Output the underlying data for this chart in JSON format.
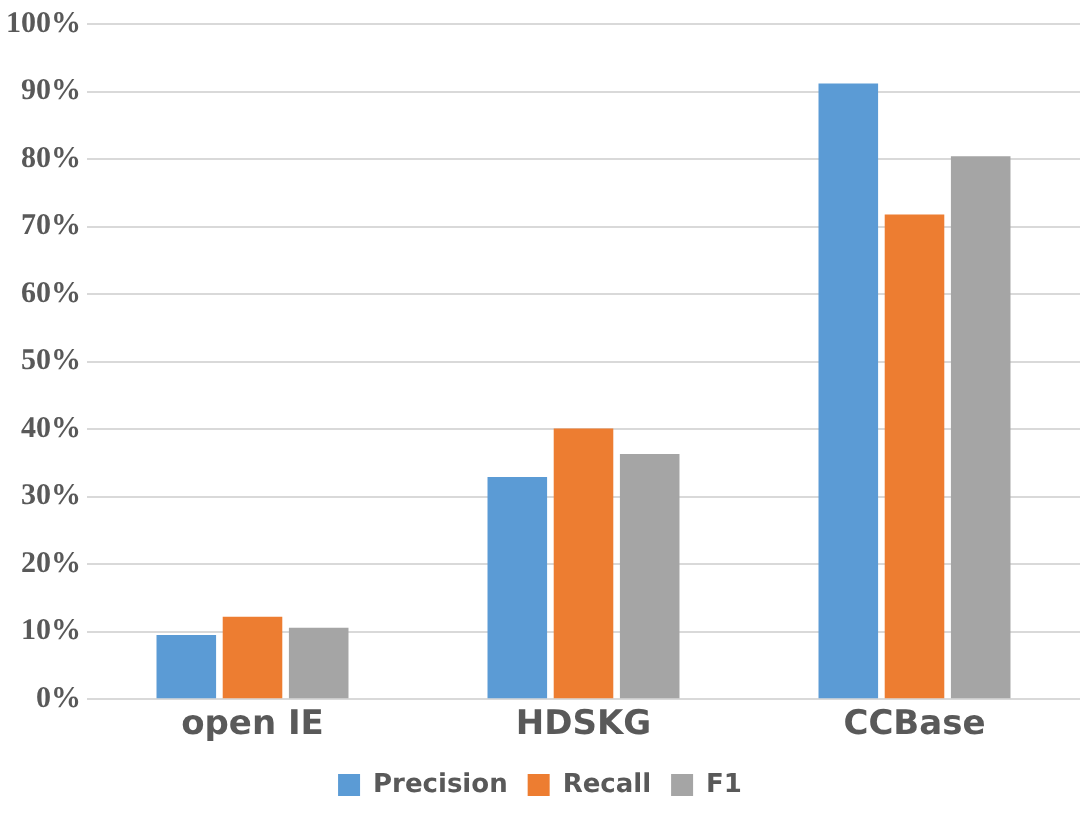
{
  "chart_data": {
    "type": "bar",
    "categories": [
      "open IE",
      "HDSKG",
      "CCBase"
    ],
    "series": [
      {
        "name": "Precision",
        "color": "#5b9bd5",
        "values": [
          9.5,
          32.9,
          91.2
        ]
      },
      {
        "name": "Recall",
        "color": "#ed7d31",
        "values": [
          12.2,
          40.1,
          71.8
        ]
      },
      {
        "name": "F1",
        "color": "#a5a5a5",
        "values": [
          10.6,
          36.3,
          80.4
        ]
      }
    ],
    "ylim": [
      0,
      100
    ],
    "yticks": [
      {
        "value": 0,
        "label": "0%"
      },
      {
        "value": 10,
        "label": "10%"
      },
      {
        "value": 20,
        "label": "20%"
      },
      {
        "value": 30,
        "label": "30%"
      },
      {
        "value": 40,
        "label": "40%"
      },
      {
        "value": 50,
        "label": "50%"
      },
      {
        "value": 60,
        "label": "60%"
      },
      {
        "value": 70,
        "label": "70%"
      },
      {
        "value": 80,
        "label": "80%"
      },
      {
        "value": 90,
        "label": "90%"
      },
      {
        "value": 100,
        "label": "100%"
      }
    ],
    "grid": "y",
    "legend": "bottom"
  }
}
